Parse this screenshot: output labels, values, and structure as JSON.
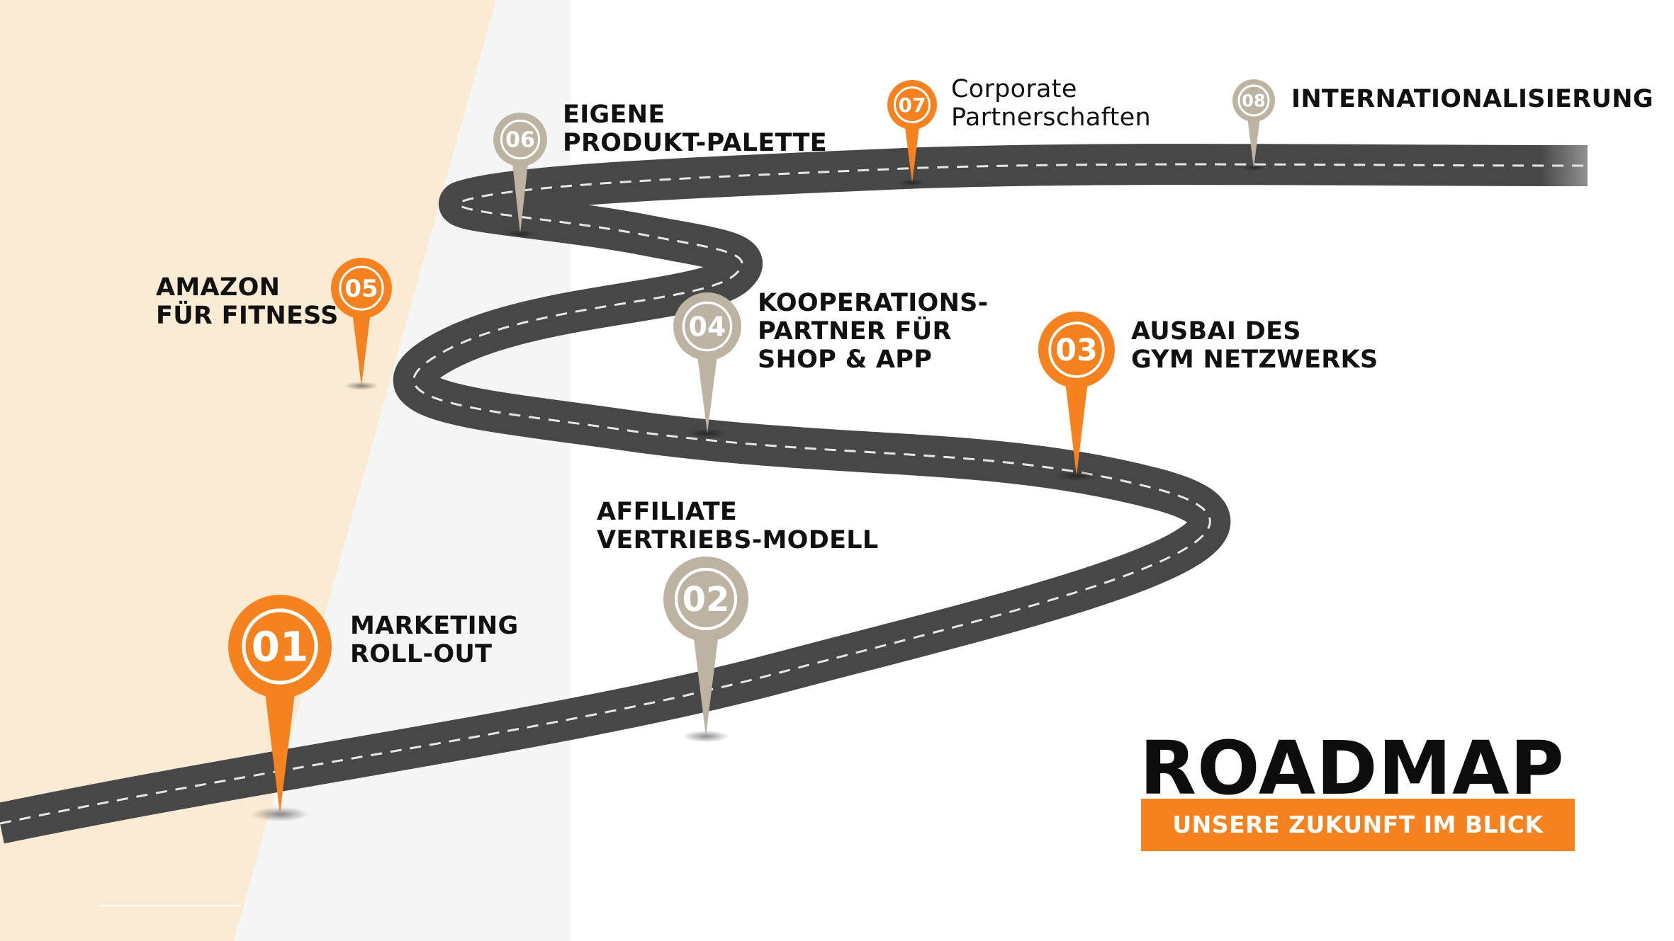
{
  "title": "ROADMAP",
  "subtitle": "UNSERE ZUKUNFT IM BLICK",
  "colors": {
    "accent": "#f5821f",
    "muted": "#bdb3a3",
    "road": "#474747",
    "background_left": "#faebd4",
    "text": "#111111"
  },
  "milestones": [
    {
      "number": "01",
      "lines": [
        "MARKETING",
        "ROLL-OUT"
      ],
      "status": "active"
    },
    {
      "number": "02",
      "lines": [
        "AFFILIATE",
        "VERTRIEBS-MODELL"
      ],
      "status": "planned"
    },
    {
      "number": "03",
      "lines": [
        "AUSBAI DES",
        "GYM NETZWERKS"
      ],
      "status": "active"
    },
    {
      "number": "04",
      "lines": [
        "KOOPERATIONS-",
        "PARTNER FÜR",
        "SHOP & APP"
      ],
      "status": "planned"
    },
    {
      "number": "05",
      "lines": [
        "AMAZON",
        "FÜR FITNESS"
      ],
      "status": "active"
    },
    {
      "number": "06",
      "lines": [
        "EIGENE",
        "PRODUKT-PALETTE"
      ],
      "status": "planned"
    },
    {
      "number": "07",
      "lines": [
        "Corporate",
        "Partnerschaften"
      ],
      "status": "active"
    },
    {
      "number": "08",
      "lines": [
        "INTERNATIONALISIERUNG"
      ],
      "status": "planned"
    }
  ]
}
